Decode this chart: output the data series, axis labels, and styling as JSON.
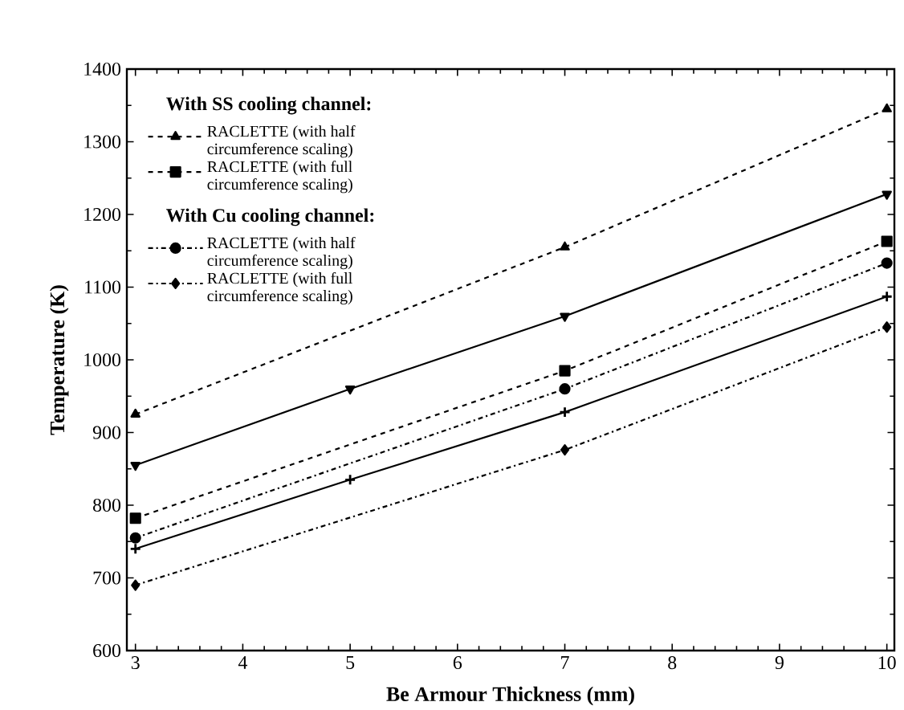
{
  "chart_data": {
    "type": "line",
    "xlabel": "Be Armour Thickness (mm)",
    "ylabel": "Temperature (K)",
    "xlim": [
      2.92,
      10.07
    ],
    "ylim": [
      600,
      1400
    ],
    "xticks": [
      3,
      4,
      5,
      6,
      7,
      8,
      9,
      10
    ],
    "yticks": [
      600,
      700,
      800,
      900,
      1000,
      1100,
      1200,
      1300,
      1400
    ],
    "grid": false,
    "legend": "top left",
    "annotations": [
      "With SS cooling channel:",
      "With Cu cooling channel:"
    ],
    "series": [
      {
        "name": "RACLETTE (with half circumference scaling)",
        "color": "#000000",
        "marker": "triangle",
        "line_style": "dashed",
        "x": [
          3,
          7,
          10
        ],
        "values": [
          925,
          1155,
          1345
        ]
      },
      {
        "color": "#000000",
        "marker": "triangle-down",
        "line_style": "solid",
        "x": [
          3,
          5,
          7,
          10
        ],
        "values": [
          855,
          960,
          1060,
          1228
        ]
      },
      {
        "name": "RACLETTE (with full circumference scaling)",
        "color": "#000000",
        "marker": "square",
        "line_style": "dashed",
        "x": [
          3,
          7,
          10
        ],
        "values": [
          782,
          985,
          1163
        ]
      },
      {
        "name": "RACLETTE (with half circumference scaling)",
        "color": "#000000",
        "marker": "circle",
        "line_style": "dashdot",
        "x": [
          3,
          7,
          10
        ],
        "values": [
          755,
          960,
          1133
        ]
      },
      {
        "color": "#000000",
        "marker": "cross",
        "line_style": "solid",
        "x": [
          3,
          5,
          7,
          10
        ],
        "values": [
          740,
          835,
          928,
          1087
        ]
      },
      {
        "name": "RACLETTE (with full circumference scaling)",
        "color": "#000000",
        "marker": "diamond",
        "line_style": "dashdot",
        "x": [
          3,
          7,
          10
        ],
        "values": [
          690,
          876,
          1045
        ]
      }
    ]
  }
}
